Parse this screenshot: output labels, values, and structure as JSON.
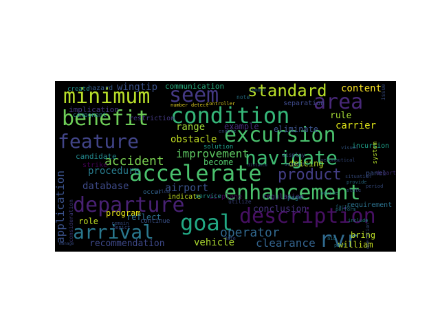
{
  "word_cloud": {
    "background": "#000000",
    "words": [
      {
        "text": "minimum",
        "color": "#b8de29"
      },
      {
        "text": "seem",
        "color": "#443983"
      },
      {
        "text": "standard",
        "color": "#b8de29"
      },
      {
        "text": "content",
        "color": "#fde725"
      },
      {
        "text": "area",
        "color": "#482878"
      },
      {
        "text": "condition",
        "color": "#35b779"
      },
      {
        "text": "benefit",
        "color": "#6ece58"
      },
      {
        "text": "feature",
        "color": "#414487"
      },
      {
        "text": "excursion",
        "color": "#4ac16d"
      },
      {
        "text": "navigate",
        "color": "#3fbc73"
      },
      {
        "text": "accelerate",
        "color": "#4ac16d"
      },
      {
        "text": "enhancement",
        "color": "#4ac16d"
      },
      {
        "text": "product",
        "color": "#433e85"
      },
      {
        "text": "departure",
        "color": "#482173"
      },
      {
        "text": "description",
        "color": "#471063"
      },
      {
        "text": "goal",
        "color": "#22a884"
      },
      {
        "text": "arrival",
        "color": "#2a788e"
      },
      {
        "text": "rvr",
        "color": "#306a8e"
      },
      {
        "text": "accident",
        "color": "#7ad151"
      },
      {
        "text": "improvement",
        "color": "#5ec962"
      },
      {
        "text": "operator",
        "color": "#31688e"
      },
      {
        "text": "carrier",
        "color": "#dde318"
      },
      {
        "text": "range",
        "color": "#a0da39"
      },
      {
        "text": "obstacle",
        "color": "#c2df23"
      },
      {
        "text": "example",
        "color": "#472d7b"
      },
      {
        "text": "eliminate",
        "color": "#3b528b"
      },
      {
        "text": "rule",
        "color": "#a5db36"
      },
      {
        "text": "database",
        "color": "#3e4a89"
      },
      {
        "text": "airport",
        "color": "#3b528b"
      },
      {
        "text": "procedure",
        "color": "#287c8e"
      },
      {
        "text": "program",
        "color": "#e5e419"
      },
      {
        "text": "vehicle",
        "color": "#addc30"
      },
      {
        "text": "clearance",
        "color": "#33638d"
      },
      {
        "text": "conclusion",
        "color": "#46337e"
      },
      {
        "text": "recommendation",
        "color": "#3e4989"
      },
      {
        "text": "application",
        "color": "#3b528b"
      },
      {
        "text": "william",
        "color": "#c8e020"
      },
      {
        "text": "bring",
        "color": "#bddf26"
      },
      {
        "text": "deicing",
        "color": "#b5de2b"
      },
      {
        "text": "become",
        "color": "#52c569"
      },
      {
        "text": "communication",
        "color": "#29af7f"
      },
      {
        "text": "wingtip",
        "color": "#3b528b"
      },
      {
        "text": "implication",
        "color": "#443983"
      },
      {
        "text": "separation",
        "color": "#3e4a89"
      },
      {
        "text": "candidate",
        "color": "#23898e"
      },
      {
        "text": "strike",
        "color": "#440154"
      },
      {
        "text": "role",
        "color": "#c2df23"
      },
      {
        "text": "reflect",
        "color": "#2d708e"
      },
      {
        "text": "airplane",
        "color": "#440154"
      },
      {
        "text": "regulation",
        "color": "#46307e"
      },
      {
        "text": "page",
        "color": "#2a768e"
      },
      {
        "text": "incursion",
        "color": "#1fa188"
      },
      {
        "text": "panel",
        "color": "#3b528b"
      },
      {
        "text": "depart",
        "color": "#46327e"
      },
      {
        "text": "system",
        "color": "#b5de2b"
      },
      {
        "text": "hazard",
        "color": "#365c8d"
      },
      {
        "text": "create",
        "color": "#21918c"
      },
      {
        "text": "restriction",
        "color": "#443983"
      },
      {
        "text": "component",
        "color": "#26828e"
      },
      {
        "text": "solution",
        "color": "#1f9e89"
      },
      {
        "text": "occur",
        "color": "#31688e"
      },
      {
        "text": "indicate",
        "color": "#c2df23"
      },
      {
        "text": "service",
        "color": "#1f968b"
      },
      {
        "text": "consideration",
        "color": "#433e85"
      },
      {
        "text": "continue",
        "color": "#3b528b"
      },
      {
        "text": "requirement",
        "color": "#2c728e"
      },
      {
        "text": "utilize",
        "color": "#3e4989"
      },
      {
        "text": "note",
        "color": "#2a788e"
      },
      {
        "text": "symbol",
        "color": "#2d708e"
      },
      {
        "text": "number",
        "color": "#fde725"
      },
      {
        "text": "detect",
        "color": "#fde725"
      },
      {
        "text": "controller",
        "color": "#fde725"
      },
      {
        "text": "display",
        "color": "#3b528b"
      },
      {
        "text": "support",
        "color": "#3b528b"
      },
      {
        "text": "include",
        "color": "#1f968b"
      },
      {
        "text": "advise",
        "color": "#2a788e"
      },
      {
        "text": "factor",
        "color": "#2a788e"
      },
      {
        "text": "visual",
        "color": "#365c8d"
      },
      {
        "text": "provide",
        "color": "#2c728e"
      },
      {
        "text": "perform",
        "color": "#2a788e"
      },
      {
        "text": "state",
        "color": "#3b528b"
      },
      {
        "text": "period",
        "color": "#3b528b"
      },
      {
        "text": "situation",
        "color": "#3b528b"
      },
      {
        "text": "aid",
        "color": "#2a788e"
      },
      {
        "text": "part",
        "color": "#2a788e"
      },
      {
        "text": "manage",
        "color": "#3b528b"
      },
      {
        "text": "remain",
        "color": "#3b528b"
      },
      {
        "text": "depict",
        "color": "#3b528b"
      },
      {
        "text": "enable",
        "color": "#3b528b"
      },
      {
        "text": "allow",
        "color": "#3b528b"
      },
      {
        "text": "date",
        "color": "#3b528b"
      },
      {
        "text": "issue",
        "color": "#3b528b"
      },
      {
        "text": "aeronautical",
        "color": "#3b528b"
      },
      {
        "text": "operation",
        "color": "#3b528b"
      },
      {
        "text": "distance",
        "color": "#3b528b"
      }
    ]
  }
}
